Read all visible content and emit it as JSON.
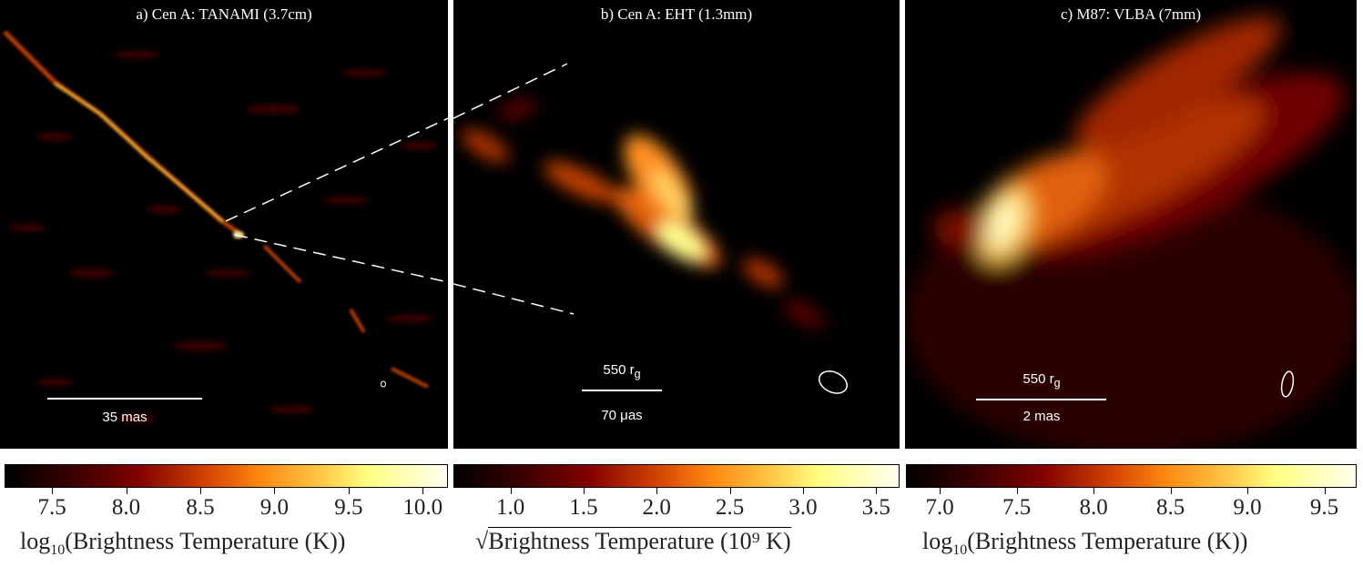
{
  "panels": [
    {
      "title": "a) Cen A: TANAMI (3.7cm)",
      "scale_bottom": "35 mas",
      "colorbar": {
        "ticks": [
          "7.5",
          "8.0",
          "8.5",
          "9.0",
          "9.5",
          "10.0"
        ],
        "range": [
          7.18,
          10.17
        ],
        "label_prefix": "log",
        "label_sub": "10",
        "label": "(Brightness Temperature (K))"
      }
    },
    {
      "title": "b) Cen A: EHT (1.3mm)",
      "scale_top": "550 r",
      "scale_top_sub": "g",
      "scale_bottom": "70 μas",
      "colorbar": {
        "ticks": [
          "1.0",
          "1.5",
          "2.0",
          "2.5",
          "3.0",
          "3.5"
        ],
        "range": [
          0.61,
          3.66
        ],
        "label_prefix": "√",
        "label": "Brightness Temperature (10⁹ K)"
      }
    },
    {
      "title": "c) M87: VLBA (7mm)",
      "scale_top": "550 r",
      "scale_top_sub": "g",
      "scale_bottom": "2 mas",
      "colorbar": {
        "ticks": [
          "7.0",
          "7.5",
          "8.0",
          "8.5",
          "9.0",
          "9.5"
        ],
        "range": [
          6.78,
          9.71
        ],
        "label_prefix": "log",
        "label_sub": "10",
        "label": "(Brightness Temperature (K))"
      }
    }
  ],
  "colormap": [
    "#000000",
    "#800000",
    "#ff8a10",
    "#ffff80",
    "#fffff0"
  ]
}
